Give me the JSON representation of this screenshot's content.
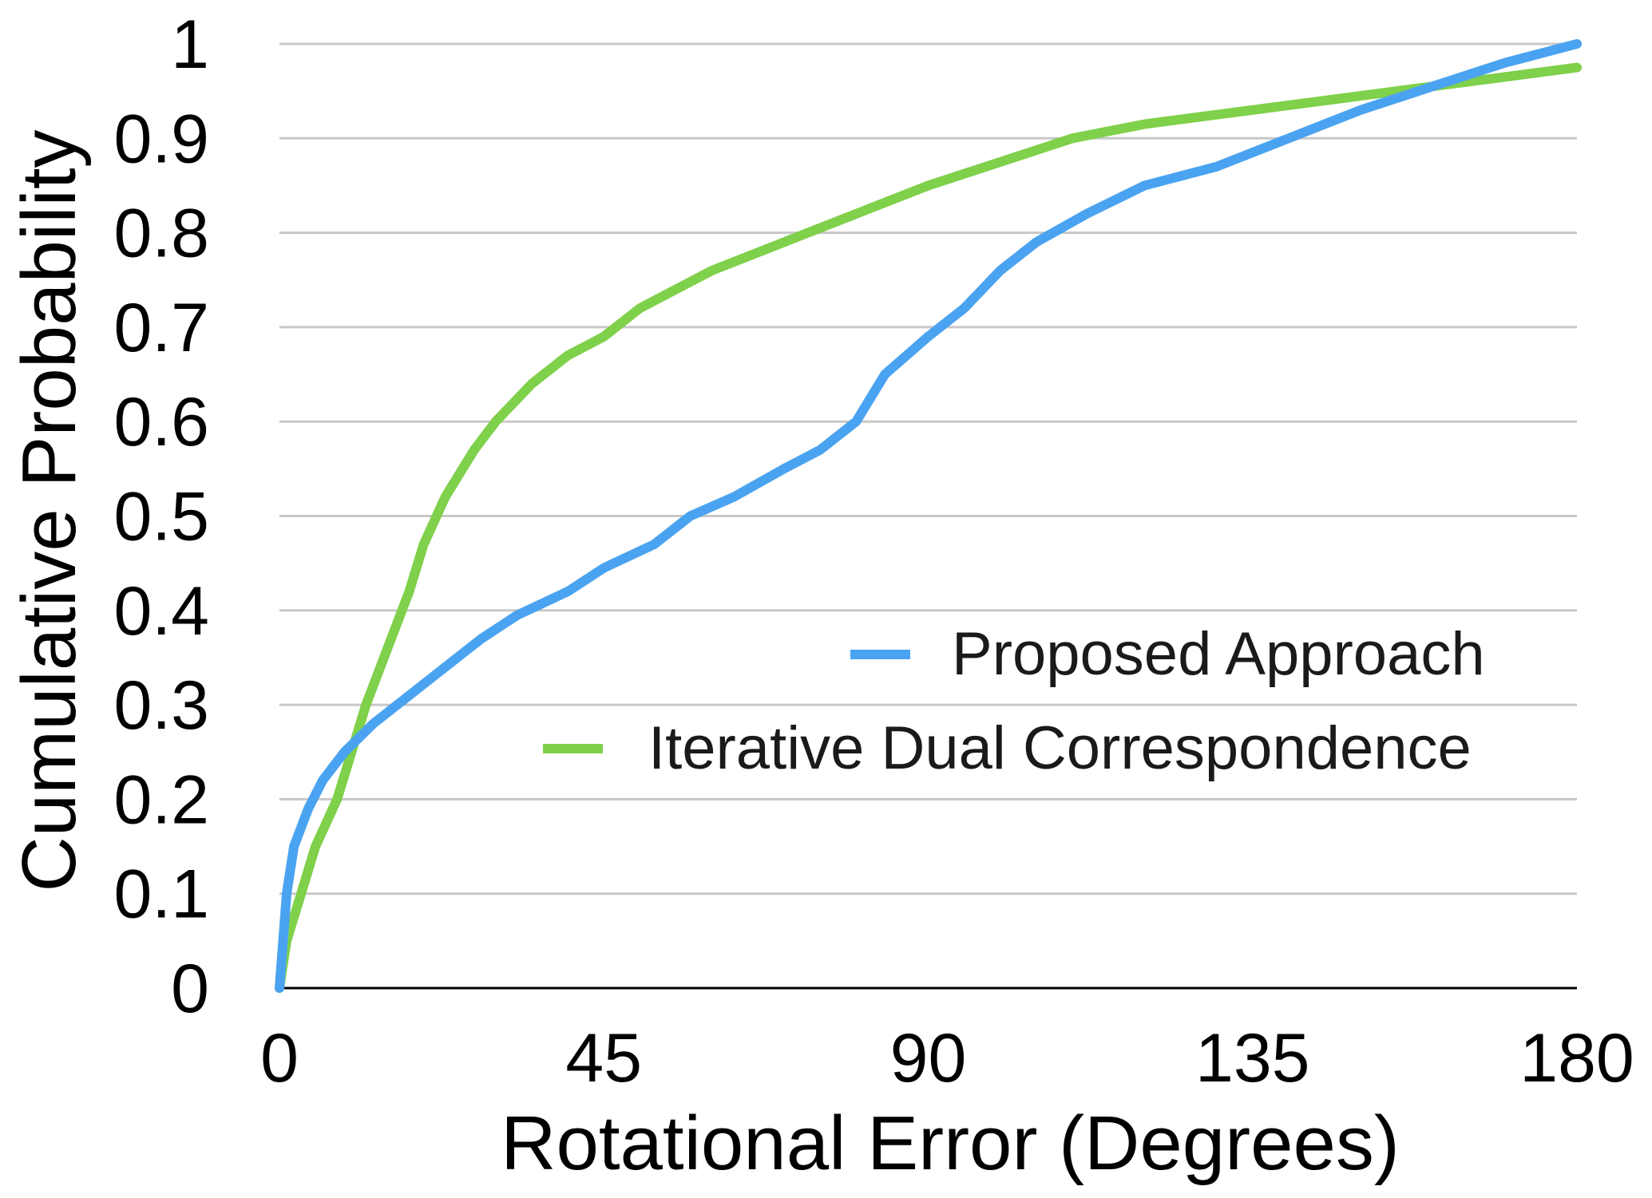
{
  "chart_data": {
    "type": "line",
    "xlabel": "Rotational Error (Degrees)",
    "ylabel": "Cumulative Probability",
    "xlim": [
      0,
      180
    ],
    "ylim": [
      0,
      1
    ],
    "x_ticks": [
      "0",
      "45",
      "90",
      "135",
      "180"
    ],
    "x_tick_values": [
      0,
      45,
      90,
      135,
      180
    ],
    "y_ticks": [
      "0",
      "0.1",
      "0.2",
      "0.3",
      "0.4",
      "0.5",
      "0.6",
      "0.7",
      "0.8",
      "0.9",
      "1"
    ],
    "y_tick_values": [
      0,
      0.1,
      0.2,
      0.3,
      0.4,
      0.5,
      0.6,
      0.7,
      0.8,
      0.9,
      1.0
    ],
    "grid": "horizontal",
    "legend_position": "right",
    "series": [
      {
        "name": "Proposed Approach",
        "color": "#4aa3f0",
        "points": [
          [
            0,
            0
          ],
          [
            1,
            0.1
          ],
          [
            2,
            0.15
          ],
          [
            4,
            0.19
          ],
          [
            6,
            0.22
          ],
          [
            9,
            0.25
          ],
          [
            13,
            0.28
          ],
          [
            18,
            0.31
          ],
          [
            23,
            0.34
          ],
          [
            28,
            0.37
          ],
          [
            33,
            0.395
          ],
          [
            40,
            0.42
          ],
          [
            45,
            0.445
          ],
          [
            52,
            0.47
          ],
          [
            57,
            0.5
          ],
          [
            63,
            0.52
          ],
          [
            70,
            0.55
          ],
          [
            75,
            0.57
          ],
          [
            80,
            0.6
          ],
          [
            84,
            0.65
          ],
          [
            90,
            0.69
          ],
          [
            95,
            0.72
          ],
          [
            100,
            0.76
          ],
          [
            105,
            0.79
          ],
          [
            112,
            0.82
          ],
          [
            120,
            0.85
          ],
          [
            130,
            0.87
          ],
          [
            140,
            0.9
          ],
          [
            150,
            0.93
          ],
          [
            160,
            0.955
          ],
          [
            170,
            0.98
          ],
          [
            180,
            1.0
          ]
        ]
      },
      {
        "name": "Iterative Dual Correspondence",
        "color": "#7fd04a",
        "points": [
          [
            0,
            0
          ],
          [
            1,
            0.05
          ],
          [
            3,
            0.1
          ],
          [
            5,
            0.15
          ],
          [
            8,
            0.2
          ],
          [
            10,
            0.25
          ],
          [
            12,
            0.3
          ],
          [
            15,
            0.36
          ],
          [
            18,
            0.42
          ],
          [
            20,
            0.47
          ],
          [
            23,
            0.52
          ],
          [
            27,
            0.57
          ],
          [
            30,
            0.6
          ],
          [
            35,
            0.64
          ],
          [
            40,
            0.67
          ],
          [
            45,
            0.69
          ],
          [
            50,
            0.72
          ],
          [
            55,
            0.74
          ],
          [
            60,
            0.76
          ],
          [
            70,
            0.79
          ],
          [
            80,
            0.82
          ],
          [
            90,
            0.85
          ],
          [
            100,
            0.875
          ],
          [
            110,
            0.9
          ],
          [
            120,
            0.915
          ],
          [
            130,
            0.925
          ],
          [
            140,
            0.935
          ],
          [
            150,
            0.945
          ],
          [
            160,
            0.955
          ],
          [
            170,
            0.965
          ],
          [
            180,
            0.975
          ]
        ]
      }
    ]
  }
}
